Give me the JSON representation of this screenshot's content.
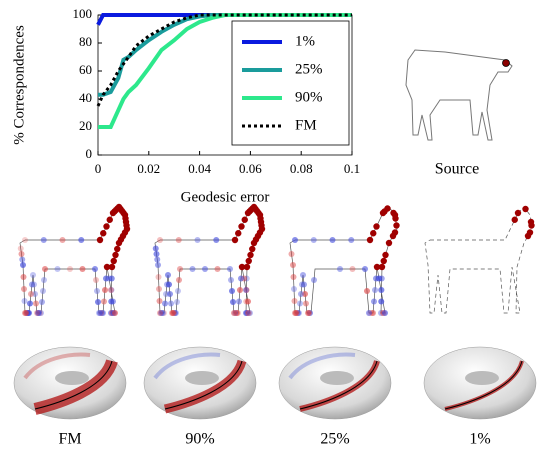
{
  "chart_data": {
    "type": "line",
    "xlabel": "Geodesic error",
    "ylabel": "% Correspondences",
    "x": [
      0,
      0.002,
      0.005,
      0.008,
      0.01,
      0.012,
      0.015,
      0.02,
      0.025,
      0.03,
      0.035,
      0.04,
      0.045,
      0.05,
      0.06,
      0.1
    ],
    "series": [
      {
        "name": "1%",
        "color": "#0a1adf",
        "dash": false,
        "values": [
          93,
          100,
          100,
          100,
          100,
          100,
          100,
          100,
          100,
          100,
          100,
          100,
          100,
          100,
          100,
          100
        ]
      },
      {
        "name": "25%",
        "color": "#1a9c9c",
        "dash": false,
        "values": [
          43,
          43,
          45,
          55,
          68,
          70,
          75,
          82,
          88,
          93,
          97,
          99,
          100,
          100,
          100,
          100
        ]
      },
      {
        "name": "90%",
        "color": "#2de88c",
        "dash": false,
        "values": [
          20,
          20,
          20,
          32,
          40,
          45,
          50,
          62,
          75,
          82,
          90,
          95,
          98,
          100,
          100,
          100
        ]
      },
      {
        "name": "FM",
        "color": "#000000",
        "dash": true,
        "values": [
          35,
          43,
          50,
          60,
          65,
          70,
          78,
          85,
          90,
          95,
          98,
          100,
          100,
          100,
          100,
          100
        ]
      }
    ],
    "xlim": [
      0,
      0.1
    ],
    "ylim": [
      0,
      100
    ],
    "xticks": [
      0,
      0.02,
      0.04,
      0.06,
      0.08,
      0.1
    ],
    "yticks": [
      0,
      20,
      40,
      60,
      80,
      100
    ]
  },
  "source_label": "Source",
  "captions": [
    "FM",
    "90%",
    "25%",
    "1%"
  ]
}
